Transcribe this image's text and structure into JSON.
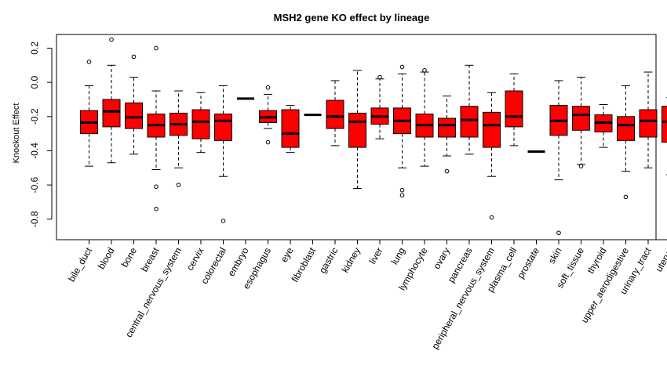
{
  "chart_data": {
    "type": "boxplot",
    "title": "MSH2 gene KO effect by lineage",
    "xlabel": "",
    "ylabel": "Knockout Effect",
    "ylim": [
      -0.92,
      0.28
    ],
    "yticks": [
      "0.2",
      "0.0",
      "-0.2",
      "-0.4",
      "-0.6",
      "-0.8"
    ],
    "grid": false,
    "box_color": "#ff0000",
    "categories": [
      {
        "name": "bile_duct",
        "whisker_low": -0.49,
        "q1": -0.3,
        "median": -0.235,
        "q3": -0.165,
        "whisker_high": -0.02,
        "outliers": [
          0.12
        ]
      },
      {
        "name": "blood",
        "whisker_low": -0.47,
        "q1": -0.26,
        "median": -0.17,
        "q3": -0.1,
        "whisker_high": 0.1,
        "outliers": [
          0.25
        ]
      },
      {
        "name": "bone",
        "whisker_low": -0.42,
        "q1": -0.27,
        "median": -0.205,
        "q3": -0.12,
        "whisker_high": 0.03,
        "outliers": [
          0.15
        ]
      },
      {
        "name": "breast",
        "whisker_low": -0.51,
        "q1": -0.32,
        "median": -0.25,
        "q3": -0.185,
        "whisker_high": -0.05,
        "outliers": [
          0.2,
          -0.61,
          -0.74
        ]
      },
      {
        "name": "central_nervous_system",
        "whisker_low": -0.5,
        "q1": -0.31,
        "median": -0.245,
        "q3": -0.18,
        "whisker_high": -0.05,
        "outliers": [
          -0.6
        ]
      },
      {
        "name": "cervix",
        "whisker_low": -0.41,
        "q1": -0.33,
        "median": -0.23,
        "q3": -0.16,
        "whisker_high": -0.06,
        "outliers": []
      },
      {
        "name": "colorectal",
        "whisker_low": -0.55,
        "q1": -0.34,
        "median": -0.225,
        "q3": -0.185,
        "whisker_high": -0.02,
        "outliers": [
          -0.81
        ]
      },
      {
        "name": "embryo",
        "whisker_low": -0.095,
        "q1": -0.095,
        "median": -0.095,
        "q3": -0.095,
        "whisker_high": -0.095,
        "outliers": []
      },
      {
        "name": "esophagus",
        "whisker_low": -0.27,
        "q1": -0.235,
        "median": -0.205,
        "q3": -0.165,
        "whisker_high": -0.07,
        "outliers": [
          -0.03,
          -0.35
        ]
      },
      {
        "name": "eye",
        "whisker_low": -0.41,
        "q1": -0.38,
        "median": -0.3,
        "q3": -0.16,
        "whisker_high": -0.135,
        "outliers": []
      },
      {
        "name": "fibroblast",
        "whisker_low": -0.19,
        "q1": -0.19,
        "median": -0.19,
        "q3": -0.19,
        "whisker_high": -0.19,
        "outliers": []
      },
      {
        "name": "gastric",
        "whisker_low": -0.37,
        "q1": -0.27,
        "median": -0.2,
        "q3": -0.105,
        "whisker_high": 0.01,
        "outliers": []
      },
      {
        "name": "kidney",
        "whisker_low": -0.62,
        "q1": -0.38,
        "median": -0.23,
        "q3": -0.18,
        "whisker_high": 0.07,
        "outliers": []
      },
      {
        "name": "liver",
        "whisker_low": -0.33,
        "q1": -0.245,
        "median": -0.2,
        "q3": -0.15,
        "whisker_high": 0.02,
        "outliers": [
          0.03
        ]
      },
      {
        "name": "lung",
        "whisker_low": -0.5,
        "q1": -0.3,
        "median": -0.225,
        "q3": -0.15,
        "whisker_high": 0.05,
        "outliers": [
          0.09,
          -0.63,
          -0.66
        ]
      },
      {
        "name": "lymphocyte",
        "whisker_low": -0.49,
        "q1": -0.32,
        "median": -0.25,
        "q3": -0.185,
        "whisker_high": 0.06,
        "outliers": [
          0.07
        ]
      },
      {
        "name": "ovary",
        "whisker_low": -0.43,
        "q1": -0.32,
        "median": -0.25,
        "q3": -0.21,
        "whisker_high": -0.08,
        "outliers": [
          -0.52
        ]
      },
      {
        "name": "pancreas",
        "whisker_low": -0.42,
        "q1": -0.32,
        "median": -0.22,
        "q3": -0.14,
        "whisker_high": 0.1,
        "outliers": []
      },
      {
        "name": "peripheral_nervous_system",
        "whisker_low": -0.55,
        "q1": -0.38,
        "median": -0.25,
        "q3": -0.175,
        "whisker_high": -0.06,
        "outliers": [
          -0.79
        ]
      },
      {
        "name": "plasma_cell",
        "whisker_low": -0.37,
        "q1": -0.26,
        "median": -0.2,
        "q3": -0.05,
        "whisker_high": 0.05,
        "outliers": []
      },
      {
        "name": "prostate",
        "whisker_low": -0.405,
        "q1": -0.405,
        "median": -0.405,
        "q3": -0.405,
        "whisker_high": -0.405,
        "outliers": []
      },
      {
        "name": "skin",
        "whisker_low": -0.57,
        "q1": -0.31,
        "median": -0.225,
        "q3": -0.135,
        "whisker_high": 0.01,
        "outliers": [
          -0.88
        ]
      },
      {
        "name": "soft_tissue",
        "whisker_low": -0.48,
        "q1": -0.28,
        "median": -0.19,
        "q3": -0.14,
        "whisker_high": 0.03,
        "outliers": [
          -0.49
        ]
      },
      {
        "name": "thyroid",
        "whisker_low": -0.38,
        "q1": -0.29,
        "median": -0.235,
        "q3": -0.19,
        "whisker_high": -0.13,
        "outliers": []
      },
      {
        "name": "upper_aerodigestive",
        "whisker_low": -0.52,
        "q1": -0.34,
        "median": -0.25,
        "q3": -0.2,
        "whisker_high": -0.02,
        "outliers": [
          -0.67
        ]
      },
      {
        "name": "urinary_tract",
        "whisker_low": -0.5,
        "q1": -0.32,
        "median": -0.225,
        "q3": -0.16,
        "whisker_high": 0.06,
        "outliers": []
      },
      {
        "name": "uterus",
        "whisker_low": -0.54,
        "q1": -0.35,
        "median": -0.23,
        "q3": -0.14,
        "whisker_high": -0.09,
        "outliers": []
      }
    ]
  }
}
